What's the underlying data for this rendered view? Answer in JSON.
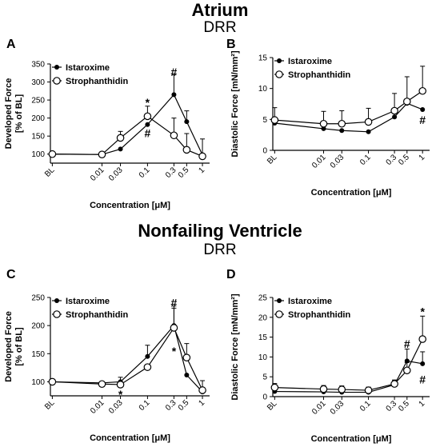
{
  "sections": [
    {
      "title": "Atrium",
      "subtitle": "DRR"
    },
    {
      "title": "Nonfailing Ventricle",
      "subtitle": "DRR"
    }
  ],
  "chart_data": [
    {
      "letter": "A",
      "type": "line",
      "ylabel_lines": [
        "Developed Force",
        "[% of BL]"
      ],
      "xlabel": "Concentration [μM]",
      "x": [
        "BL",
        "0.01",
        "0.03",
        "0.1",
        "0.3",
        "0.5",
        "1"
      ],
      "ylim": [
        75,
        350
      ],
      "yticks": [
        100,
        150,
        200,
        250,
        300,
        350
      ],
      "legend": "top-left",
      "series": [
        {
          "name": "Istaroxime",
          "marker": "filled",
          "values": [
            100,
            99,
            114,
            182,
            265,
            190,
            98
          ],
          "errors": [
            0,
            0,
            0,
            0,
            55,
            30,
            0
          ]
        },
        {
          "name": "Strophanthidin",
          "marker": "open",
          "values": [
            100,
            99,
            145,
            205,
            152,
            112,
            94
          ],
          "errors": [
            0,
            0,
            18,
            28,
            48,
            45,
            48
          ]
        }
      ],
      "annotations": [
        {
          "text": "*",
          "x": "0.1",
          "y": 243
        },
        {
          "text": "#",
          "x": "0.1",
          "y": 158
        },
        {
          "text": "#",
          "x": "0.3",
          "y": 328
        }
      ]
    },
    {
      "letter": "B",
      "type": "line",
      "ylabel_lines": [
        "Diastolic Force [mN/mm²]"
      ],
      "xlabel": "Concentration [μM]",
      "x": [
        "BL",
        "0.01",
        "0.03",
        "0.1",
        "0.3",
        "0.5",
        "1"
      ],
      "ylim": [
        0,
        15
      ],
      "yticks": [
        0,
        5,
        10,
        15
      ],
      "legend": "top-left",
      "series": [
        {
          "name": "Istaroxime",
          "marker": "filled",
          "values": [
            4.4,
            3.5,
            3.2,
            3.0,
            5.4,
            7.6,
            6.6
          ],
          "errors": [
            0,
            0,
            0,
            0,
            0,
            0,
            0
          ]
        },
        {
          "name": "Strophanthidin",
          "marker": "open",
          "values": [
            4.9,
            4.3,
            4.3,
            4.6,
            6.4,
            7.9,
            9.6
          ],
          "errors": [
            2.0,
            2.0,
            2.1,
            2.2,
            2.8,
            4.0,
            4.0
          ]
        }
      ],
      "annotations": [
        {
          "text": "#",
          "x": "1",
          "y": 4.9
        }
      ]
    },
    {
      "letter": "C",
      "type": "line",
      "ylabel_lines": [
        "Developed Force",
        "[% of BL]"
      ],
      "xlabel": "Concentration [μM]",
      "x": [
        "BL",
        "0.01",
        "0.03",
        "0.1",
        "0.3",
        "0.5",
        "1"
      ],
      "ylim": [
        75,
        250
      ],
      "yticks": [
        100,
        150,
        200,
        250
      ],
      "legend": "top-left",
      "series": [
        {
          "name": "Istaroxime",
          "marker": "filled",
          "values": [
            100,
            98,
            100,
            145,
            200,
            112,
            82
          ],
          "errors": [
            0,
            0,
            8,
            20,
            35,
            0,
            20
          ]
        },
        {
          "name": "Strophanthidin",
          "marker": "open",
          "values": [
            100,
            96,
            95,
            126,
            196,
            143,
            85
          ],
          "errors": [
            0,
            0,
            0,
            0,
            35,
            25,
            0
          ]
        }
      ],
      "annotations": [
        {
          "text": "#",
          "x": "0.3",
          "y": 241
        },
        {
          "text": "*",
          "x": "0.3",
          "y": 155
        },
        {
          "text": "*",
          "x": "0.03",
          "y": 78
        }
      ]
    },
    {
      "letter": "D",
      "type": "line",
      "ylabel_lines": [
        "Diastolic Force [mN/mm²]"
      ],
      "xlabel": "Concentration [μM]",
      "x": [
        "BL",
        "0.01",
        "0.03",
        "0.1",
        "0.3",
        "0.5",
        "1"
      ],
      "ylim": [
        0,
        25
      ],
      "yticks": [
        0,
        5,
        10,
        15,
        20,
        25
      ],
      "legend": "top-left",
      "series": [
        {
          "name": "Istaroxime",
          "marker": "filled",
          "values": [
            1.3,
            1.2,
            1.1,
            1.1,
            3.0,
            9.0,
            8.3
          ],
          "errors": [
            0,
            0.8,
            0.8,
            0.7,
            1.0,
            3.0,
            3.0
          ]
        },
        {
          "name": "Strophanthidin",
          "marker": "open",
          "values": [
            2.3,
            1.9,
            1.8,
            1.6,
            3.2,
            6.6,
            14.5
          ],
          "errors": [
            1.0,
            0.9,
            0.9,
            0.8,
            1.0,
            2.0,
            5.8
          ]
        }
      ],
      "annotations": [
        {
          "text": "*",
          "x": "1",
          "y": 21.5
        },
        {
          "text": "#",
          "x": "0.5",
          "y": 13.3
        },
        {
          "text": "#",
          "x": "1",
          "y": 4.3
        }
      ]
    }
  ]
}
